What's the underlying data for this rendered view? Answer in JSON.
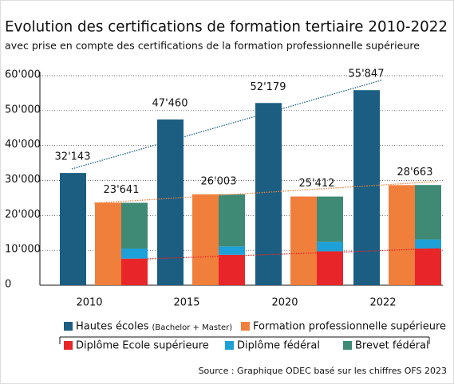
{
  "chart_data": {
    "type": "grouped_stacked_bar",
    "title": "Evolution des certifications de formation tertiaire 2010-2022",
    "subtitle": "avec prise en compte des certifications de la formation professionnelle supérieure",
    "source": "Source : Graphique ODEC basé sur les chiffres OFS 2023",
    "categories": [
      "2010",
      "2015",
      "2020",
      "2022"
    ],
    "series": [
      {
        "name": "Hautes écoles",
        "note": "(Bachelor + Master)",
        "color": "#1b5e82",
        "values": [
          32143,
          47460,
          52179,
          55847
        ],
        "value_labels": [
          "32'143",
          "47'460",
          "52'179",
          "55'847"
        ]
      },
      {
        "name": "Formation professionnelle supérieure",
        "color": "#f07f3c",
        "values": [
          23641,
          26003,
          25412,
          28663
        ],
        "value_labels": [
          "23'641",
          "26'003",
          "25'412",
          "28'663"
        ]
      },
      {
        "name": "Diplôme Ecole supérieure",
        "color": "#e8262a",
        "stack": true,
        "values": [
          7600,
          8700,
          9700,
          10500
        ]
      },
      {
        "name": "Diplôme fédéral",
        "color": "#1ea0d8",
        "stack": true,
        "values": [
          2900,
          2400,
          2700,
          2600
        ]
      },
      {
        "name": "Brevet fédéral",
        "color": "#3e8a74",
        "stack": true,
        "values": [
          13100,
          14900,
          13000,
          15600
        ]
      }
    ],
    "trend_lines": [
      {
        "color": "#1b5e82",
        "values": [
          33300,
          58700
        ]
      },
      {
        "color": "#f07f3c",
        "values": [
          23500,
          29700
        ]
      },
      {
        "color": "#e8262a",
        "values": [
          7300,
          10500
        ]
      }
    ],
    "ylim": [
      0,
      60000
    ],
    "yticks": [
      0,
      {
        "value": 10000,
        "label": "10'000"
      },
      {
        "value": 20000,
        "label": "20'000"
      },
      {
        "value": 30000,
        "label": "30'000"
      },
      {
        "value": 40000,
        "label": "40'000"
      },
      {
        "value": 50000,
        "label": "50'000"
      },
      {
        "value": 60000,
        "label": "60'000"
      }
    ],
    "grid": true
  }
}
